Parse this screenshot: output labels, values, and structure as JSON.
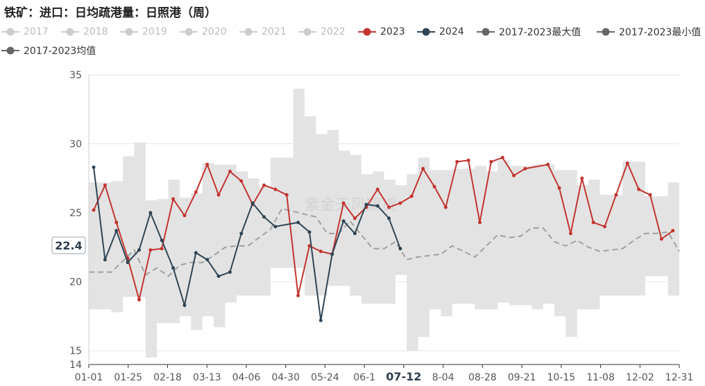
{
  "title": "铁矿：进口：日均疏港量：日照港（周）",
  "watermark": "紫金天风期货",
  "crosshair_value": "22.4",
  "crosshair_x_label": "07-12",
  "legend": [
    {
      "label": "2017",
      "color": "#cccccc",
      "active": false
    },
    {
      "label": "2018",
      "color": "#cccccc",
      "active": false
    },
    {
      "label": "2019",
      "color": "#cccccc",
      "active": false
    },
    {
      "label": "2020",
      "color": "#cccccc",
      "active": false
    },
    {
      "label": "2021",
      "color": "#cccccc",
      "active": false
    },
    {
      "label": "2022",
      "color": "#cccccc",
      "active": false
    },
    {
      "label": "2023",
      "color": "#c23531",
      "active": true
    },
    {
      "label": "2024",
      "color": "#2f4554",
      "active": true
    },
    {
      "label": "2017-2023最大值",
      "color": "#666666",
      "active": true
    },
    {
      "label": "2017-2023最小值",
      "color": "#666666",
      "active": true
    },
    {
      "label": "2017-2023均值",
      "color": "#666666",
      "active": true
    }
  ],
  "chart_data": {
    "type": "line",
    "ylim": [
      14,
      35
    ],
    "yticks": [
      14,
      15,
      20,
      25,
      30,
      35
    ],
    "xtick_labels": [
      "01-01",
      "01-25",
      "02-18",
      "03-13",
      "04-06",
      "04-30",
      "05-24",
      "06-1",
      "07-12",
      "8-04",
      "08-28",
      "09-21",
      "10-15",
      "11-08",
      "12-02",
      "12-31"
    ],
    "grid": true,
    "series": [
      {
        "name": "2023",
        "color": "#c23531",
        "points": [
          [
            3,
            25.2
          ],
          [
            10,
            27.0
          ],
          [
            17,
            24.3
          ],
          [
            24,
            21.7
          ],
          [
            31,
            18.7
          ],
          [
            38,
            22.3
          ],
          [
            45,
            22.4
          ],
          [
            52,
            26.0
          ],
          [
            59,
            24.8
          ],
          [
            66,
            26.5
          ],
          [
            73,
            28.5
          ],
          [
            80,
            26.3
          ],
          [
            87,
            28.0
          ],
          [
            94,
            27.3
          ],
          [
            101,
            25.6
          ],
          [
            108,
            27.0
          ],
          [
            115,
            26.7
          ],
          [
            122,
            26.3
          ],
          [
            129,
            19.0
          ],
          [
            136,
            22.6
          ],
          [
            143,
            22.2
          ],
          [
            150,
            22.0
          ],
          [
            157,
            25.7
          ],
          [
            164,
            24.6
          ],
          [
            171,
            25.4
          ],
          [
            178,
            26.7
          ],
          [
            185,
            25.4
          ],
          [
            192,
            25.7
          ],
          [
            199,
            26.2
          ],
          [
            206,
            28.2
          ],
          [
            213,
            26.9
          ],
          [
            220,
            25.4
          ],
          [
            227,
            28.7
          ],
          [
            234,
            28.8
          ],
          [
            241,
            24.3
          ],
          [
            248,
            28.7
          ],
          [
            255,
            29.0
          ],
          [
            262,
            27.7
          ],
          [
            269,
            28.2
          ],
          [
            283,
            28.5
          ],
          [
            290,
            26.8
          ],
          [
            297,
            23.5
          ],
          [
            304,
            27.5
          ],
          [
            311,
            24.3
          ],
          [
            318,
            24.0
          ],
          [
            325,
            26.3
          ],
          [
            332,
            28.6
          ],
          [
            339,
            26.7
          ],
          [
            346,
            26.3
          ],
          [
            353,
            23.1
          ],
          [
            360,
            23.7
          ]
        ]
      },
      {
        "name": "2024",
        "color": "#2f4554",
        "points": [
          [
            3,
            28.3
          ],
          [
            10,
            21.6
          ],
          [
            17,
            23.7
          ],
          [
            24,
            21.4
          ],
          [
            31,
            22.3
          ],
          [
            38,
            25.0
          ],
          [
            45,
            23.0
          ],
          [
            52,
            21.0
          ],
          [
            59,
            18.3
          ],
          [
            66,
            22.1
          ],
          [
            73,
            21.6
          ],
          [
            80,
            20.4
          ],
          [
            87,
            20.7
          ],
          [
            94,
            23.5
          ],
          [
            101,
            25.7
          ],
          [
            108,
            24.7
          ],
          [
            115,
            24.0
          ],
          [
            129,
            24.3
          ],
          [
            136,
            23.6
          ],
          [
            143,
            17.2
          ],
          [
            150,
            22.0
          ],
          [
            157,
            24.4
          ],
          [
            164,
            23.5
          ],
          [
            171,
            25.6
          ],
          [
            178,
            25.5
          ],
          [
            185,
            24.6
          ],
          [
            192,
            22.4
          ]
        ]
      },
      {
        "name": "2017-2023最大值",
        "points": [
          [
            0,
            27.2
          ],
          [
            7,
            27.2
          ],
          [
            14,
            27.3
          ],
          [
            21,
            29.1
          ],
          [
            28,
            30.1
          ],
          [
            35,
            25.9
          ],
          [
            42,
            26.0
          ],
          [
            49,
            27.4
          ],
          [
            56,
            26.1
          ],
          [
            63,
            26.4
          ],
          [
            70,
            28.6
          ],
          [
            77,
            28.5
          ],
          [
            84,
            28.5
          ],
          [
            91,
            28.0
          ],
          [
            98,
            27.5
          ],
          [
            105,
            26.9
          ],
          [
            112,
            29.0
          ],
          [
            119,
            29.0
          ],
          [
            126,
            34.0
          ],
          [
            133,
            32.0
          ],
          [
            140,
            30.7
          ],
          [
            147,
            31.0
          ],
          [
            154,
            29.5
          ],
          [
            161,
            29.2
          ],
          [
            168,
            27.8
          ],
          [
            175,
            28.0
          ],
          [
            182,
            27.4
          ],
          [
            189,
            27.0
          ],
          [
            196,
            27.8
          ],
          [
            203,
            29.0
          ],
          [
            210,
            28.1
          ],
          [
            217,
            28.1
          ],
          [
            224,
            28.2
          ],
          [
            231,
            28.2
          ],
          [
            238,
            28.4
          ],
          [
            245,
            28.0
          ],
          [
            252,
            28.8
          ],
          [
            259,
            28.4
          ],
          [
            266,
            28.4
          ],
          [
            273,
            28.5
          ],
          [
            280,
            28.5
          ],
          [
            287,
            28.1
          ],
          [
            294,
            28.1
          ],
          [
            301,
            27.0
          ],
          [
            308,
            27.4
          ],
          [
            315,
            26.3
          ],
          [
            322,
            26.3
          ],
          [
            329,
            28.7
          ],
          [
            336,
            28.7
          ],
          [
            343,
            26.2
          ],
          [
            350,
            26.2
          ],
          [
            357,
            27.2
          ],
          [
            364,
            25.4
          ]
        ]
      },
      {
        "name": "2017-2023最小值",
        "points": [
          [
            0,
            18.0
          ],
          [
            7,
            18.0
          ],
          [
            14,
            17.8
          ],
          [
            21,
            18.9
          ],
          [
            28,
            18.9
          ],
          [
            35,
            14.5
          ],
          [
            42,
            17.0
          ],
          [
            49,
            17.0
          ],
          [
            56,
            17.5
          ],
          [
            63,
            16.5
          ],
          [
            70,
            17.5
          ],
          [
            77,
            16.7
          ],
          [
            84,
            18.5
          ],
          [
            91,
            19.0
          ],
          [
            98,
            19.0
          ],
          [
            105,
            19.0
          ],
          [
            112,
            21.0
          ],
          [
            119,
            21.0
          ],
          [
            126,
            21.0
          ],
          [
            133,
            19.0
          ],
          [
            140,
            19.0
          ],
          [
            147,
            19.7
          ],
          [
            154,
            19.7
          ],
          [
            161,
            19.0
          ],
          [
            168,
            18.4
          ],
          [
            175,
            18.4
          ],
          [
            182,
            18.4
          ],
          [
            189,
            20.5
          ],
          [
            196,
            15.0
          ],
          [
            203,
            16.0
          ],
          [
            210,
            18.0
          ],
          [
            217,
            17.5
          ],
          [
            224,
            18.4
          ],
          [
            231,
            18.4
          ],
          [
            238,
            18.0
          ],
          [
            245,
            18.0
          ],
          [
            252,
            18.5
          ],
          [
            259,
            18.3
          ],
          [
            266,
            18.3
          ],
          [
            273,
            18.0
          ],
          [
            280,
            18.4
          ],
          [
            287,
            17.5
          ],
          [
            294,
            16.0
          ],
          [
            301,
            18.0
          ],
          [
            308,
            18.0
          ],
          [
            315,
            19.0
          ],
          [
            322,
            19.0
          ],
          [
            329,
            19.0
          ],
          [
            336,
            19.0
          ],
          [
            343,
            20.4
          ],
          [
            350,
            20.4
          ],
          [
            357,
            19.0
          ],
          [
            364,
            19.0
          ]
        ]
      },
      {
        "name": "2017-2023均值",
        "points": [
          [
            0,
            20.7
          ],
          [
            7,
            20.7
          ],
          [
            14,
            20.7
          ],
          [
            21,
            21.5
          ],
          [
            28,
            22.3
          ],
          [
            35,
            20.5
          ],
          [
            42,
            21.0
          ],
          [
            49,
            20.4
          ],
          [
            56,
            21.2
          ],
          [
            63,
            21.4
          ],
          [
            70,
            21.4
          ],
          [
            77,
            21.9
          ],
          [
            84,
            22.5
          ],
          [
            91,
            22.6
          ],
          [
            98,
            22.6
          ],
          [
            105,
            23.2
          ],
          [
            112,
            23.8
          ],
          [
            119,
            25.3
          ],
          [
            126,
            25.1
          ],
          [
            133,
            24.9
          ],
          [
            140,
            24.7
          ],
          [
            147,
            23.5
          ],
          [
            154,
            23.5
          ],
          [
            161,
            24.4
          ],
          [
            168,
            23.4
          ],
          [
            175,
            22.4
          ],
          [
            182,
            22.4
          ],
          [
            189,
            22.9
          ],
          [
            196,
            21.6
          ],
          [
            203,
            21.8
          ],
          [
            210,
            21.9
          ],
          [
            217,
            22.0
          ],
          [
            224,
            22.6
          ],
          [
            231,
            22.2
          ],
          [
            238,
            21.8
          ],
          [
            245,
            22.6
          ],
          [
            252,
            23.4
          ],
          [
            259,
            23.2
          ],
          [
            266,
            23.3
          ],
          [
            273,
            23.9
          ],
          [
            280,
            23.9
          ],
          [
            287,
            22.9
          ],
          [
            294,
            22.6
          ],
          [
            301,
            23.0
          ],
          [
            308,
            22.5
          ],
          [
            315,
            22.2
          ],
          [
            322,
            22.3
          ],
          [
            329,
            22.4
          ],
          [
            336,
            23.0
          ],
          [
            343,
            23.5
          ],
          [
            350,
            23.5
          ],
          [
            357,
            23.6
          ],
          [
            364,
            22.2
          ]
        ]
      }
    ]
  }
}
